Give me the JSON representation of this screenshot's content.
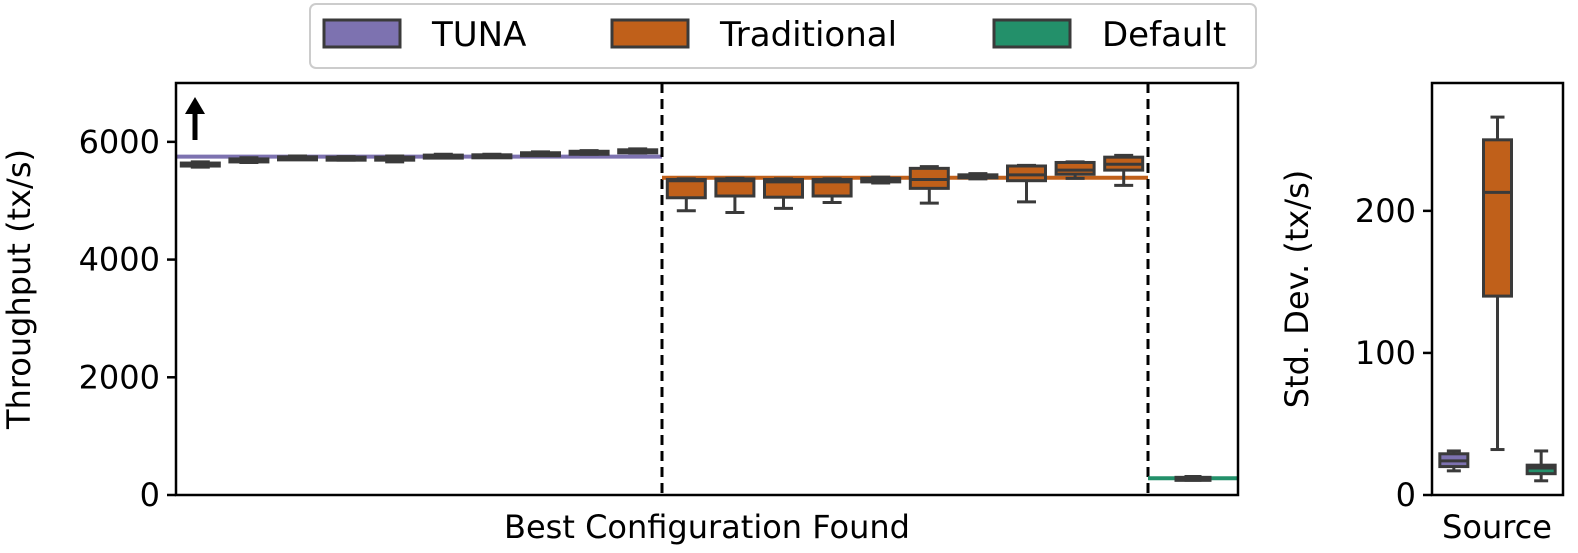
{
  "legend": {
    "placement": "top-center",
    "items": [
      {
        "label": "TUNA",
        "color": "#7d72b0"
      },
      {
        "label": "Traditional",
        "color": "#c0601a"
      },
      {
        "label": "Default",
        "color": "#23906a"
      }
    ]
  },
  "chart_data": [
    {
      "type": "box",
      "xlabel": "Best Configuration Found",
      "ylabel": "Throughput (tx/s)",
      "ylim": [
        0,
        7000
      ],
      "yticks": [
        "0",
        "2000",
        "4000",
        "6000"
      ],
      "higher_is_better_arrow": true,
      "groups": [
        {
          "name": "TUNA",
          "color": "#7d72b0",
          "reference_line": 5750,
          "boxes": [
            {
              "min": 5570,
              "q1": 5590,
              "median": 5610,
              "q3": 5640,
              "max": 5660
            },
            {
              "min": 5650,
              "q1": 5670,
              "median": 5690,
              "q3": 5710,
              "max": 5730
            },
            {
              "min": 5700,
              "q1": 5715,
              "median": 5730,
              "q3": 5745,
              "max": 5760
            },
            {
              "min": 5690,
              "q1": 5705,
              "median": 5720,
              "q3": 5740,
              "max": 5750
            },
            {
              "min": 5660,
              "q1": 5690,
              "median": 5715,
              "q3": 5740,
              "max": 5760
            },
            {
              "min": 5730,
              "q1": 5745,
              "median": 5760,
              "q3": 5775,
              "max": 5790
            },
            {
              "min": 5740,
              "q1": 5755,
              "median": 5765,
              "q3": 5780,
              "max": 5790
            },
            {
              "min": 5770,
              "q1": 5785,
              "median": 5800,
              "q3": 5815,
              "max": 5830
            },
            {
              "min": 5790,
              "q1": 5805,
              "median": 5820,
              "q3": 5840,
              "max": 5850
            },
            {
              "min": 5810,
              "q1": 5825,
              "median": 5845,
              "q3": 5865,
              "max": 5880
            }
          ]
        },
        {
          "name": "Traditional",
          "color": "#c0601a",
          "reference_line": 5390,
          "boxes": [
            {
              "min": 4830,
              "q1": 5050,
              "median": 5340,
              "q3": 5360,
              "max": 5370
            },
            {
              "min": 4800,
              "q1": 5080,
              "median": 5340,
              "q3": 5370,
              "max": 5380
            },
            {
              "min": 4870,
              "q1": 5060,
              "median": 5320,
              "q3": 5360,
              "max": 5370
            },
            {
              "min": 4970,
              "q1": 5080,
              "median": 5320,
              "q3": 5360,
              "max": 5370
            },
            {
              "min": 5300,
              "q1": 5320,
              "median": 5340,
              "q3": 5380,
              "max": 5400
            },
            {
              "min": 4960,
              "q1": 5210,
              "median": 5360,
              "q3": 5550,
              "max": 5580
            },
            {
              "min": 5370,
              "q1": 5390,
              "median": 5410,
              "q3": 5440,
              "max": 5460
            },
            {
              "min": 4980,
              "q1": 5340,
              "median": 5440,
              "q3": 5590,
              "max": 5600
            },
            {
              "min": 5380,
              "q1": 5450,
              "median": 5520,
              "q3": 5650,
              "max": 5660
            },
            {
              "min": 5260,
              "q1": 5520,
              "median": 5620,
              "q3": 5740,
              "max": 5770
            }
          ]
        },
        {
          "name": "Default",
          "color": "#23906a",
          "reference_line": 285,
          "boxes": [
            {
              "min": 250,
              "q1": 265,
              "median": 280,
              "q3": 300,
              "max": 315
            }
          ]
        }
      ]
    },
    {
      "type": "box",
      "xlabel": "Source",
      "ylabel": "Std. Dev. (tx/s)",
      "ylim": [
        0,
        290
      ],
      "yticks": [
        "0",
        "100",
        "200"
      ],
      "boxes": [
        {
          "name": "TUNA",
          "color": "#7d72b0",
          "min": 17,
          "q1": 20,
          "median": 24,
          "q3": 29,
          "max": 31
        },
        {
          "name": "Traditional",
          "color": "#c0601a",
          "min": 32,
          "q1": 140,
          "median": 213,
          "q3": 250,
          "max": 266
        },
        {
          "name": "Default",
          "color": "#23906a",
          "min": 10,
          "q1": 15,
          "median": 19,
          "q3": 21,
          "max": 31
        }
      ]
    }
  ]
}
